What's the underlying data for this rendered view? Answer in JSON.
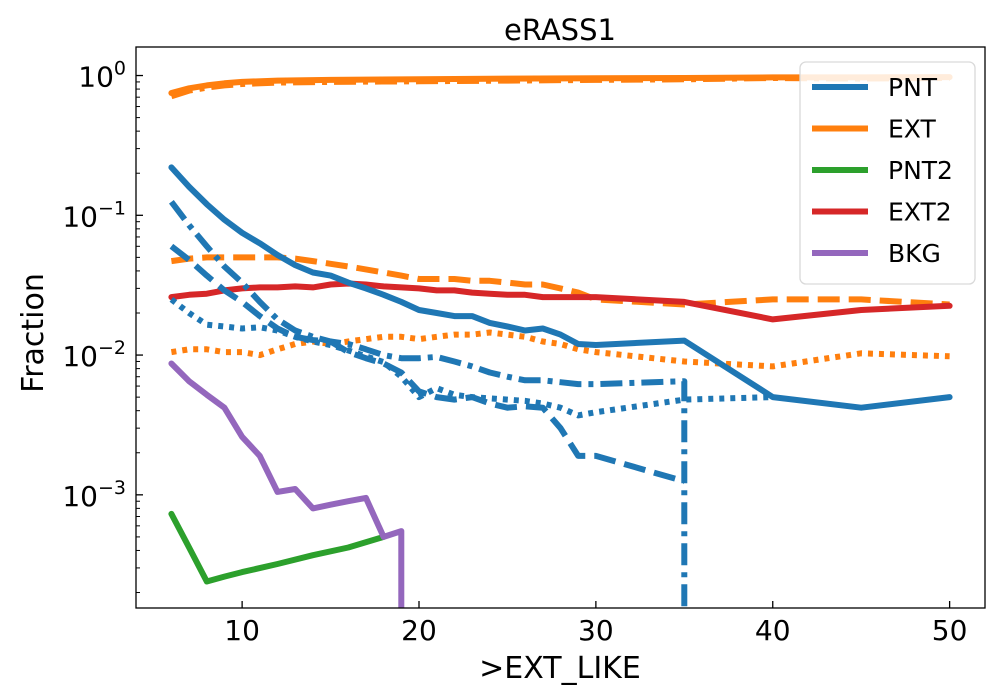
{
  "chart_data": {
    "type": "line",
    "title": "eRASS1",
    "xlabel": ">EXT_LIKE",
    "ylabel": "Fraction",
    "xlim": [
      4,
      52
    ],
    "ylim": [
      0.000155,
      1.6
    ],
    "yscale": "log",
    "x_ticks": [
      10,
      20,
      30,
      40,
      50
    ],
    "x_tick_labels": [
      "10",
      "20",
      "30",
      "40",
      "50"
    ],
    "y_ticks": [
      1,
      0.1,
      0.01,
      0.001
    ],
    "y_tick_labels": [
      {
        "base": "10",
        "exp": "0"
      },
      {
        "base": "10",
        "exp": "−1"
      },
      {
        "base": "10",
        "exp": "−2"
      },
      {
        "base": "10",
        "exp": "−3"
      }
    ],
    "grid": false,
    "legend_position": "top-right",
    "legend": [
      {
        "name": "PNT",
        "color": "#1f77b4"
      },
      {
        "name": "EXT",
        "color": "#ff7f0e"
      },
      {
        "name": "PNT2",
        "color": "#2ca02c"
      },
      {
        "name": "EXT2",
        "color": "#d62728"
      },
      {
        "name": "BKG",
        "color": "#9467bd"
      }
    ],
    "series": [
      {
        "id": "ext-dashdot",
        "color": "#ff7f0e",
        "style": "dashdot",
        "points": [
          [
            6,
            0.71
          ],
          [
            7,
            0.78
          ],
          [
            8,
            0.82
          ],
          [
            9,
            0.85
          ],
          [
            10,
            0.87
          ],
          [
            12,
            0.89
          ],
          [
            15,
            0.9
          ],
          [
            20,
            0.91
          ],
          [
            25,
            0.92
          ],
          [
            30,
            0.93
          ],
          [
            35,
            0.94
          ],
          [
            40,
            0.96
          ],
          [
            45,
            0.95
          ],
          [
            50,
            0.96
          ]
        ]
      },
      {
        "id": "ext-solid",
        "color": "#ff7f0e",
        "style": "solid",
        "points": [
          [
            6,
            0.75
          ],
          [
            7,
            0.81
          ],
          [
            8,
            0.85
          ],
          [
            9,
            0.88
          ],
          [
            10,
            0.9
          ],
          [
            12,
            0.92
          ],
          [
            15,
            0.93
          ],
          [
            20,
            0.94
          ],
          [
            25,
            0.95
          ],
          [
            30,
            0.955
          ],
          [
            35,
            0.96
          ],
          [
            40,
            0.97
          ],
          [
            45,
            0.97
          ],
          [
            50,
            0.975
          ]
        ]
      },
      {
        "id": "ext-dashed",
        "color": "#ff7f0e",
        "style": "dashed",
        "points": [
          [
            6,
            0.047
          ],
          [
            7,
            0.049
          ],
          [
            8,
            0.05
          ],
          [
            9,
            0.05
          ],
          [
            10,
            0.05
          ],
          [
            12,
            0.05
          ],
          [
            13,
            0.049
          ],
          [
            14,
            0.047
          ],
          [
            15,
            0.045
          ],
          [
            16,
            0.043
          ],
          [
            17,
            0.041
          ],
          [
            18,
            0.039
          ],
          [
            19,
            0.037
          ],
          [
            20,
            0.035
          ],
          [
            21,
            0.035
          ],
          [
            22,
            0.035
          ],
          [
            23,
            0.034
          ],
          [
            24,
            0.034
          ],
          [
            25,
            0.033
          ],
          [
            26,
            0.032
          ],
          [
            27,
            0.032
          ],
          [
            28,
            0.03
          ],
          [
            29,
            0.028
          ],
          [
            30,
            0.025
          ],
          [
            35,
            0.023
          ],
          [
            40,
            0.025
          ],
          [
            45,
            0.025
          ],
          [
            50,
            0.023
          ]
        ]
      },
      {
        "id": "ext-dotted",
        "color": "#ff7f0e",
        "style": "dotted",
        "points": [
          [
            6,
            0.0105
          ],
          [
            7,
            0.011
          ],
          [
            8,
            0.011
          ],
          [
            9,
            0.0105
          ],
          [
            10,
            0.0105
          ],
          [
            11,
            0.01
          ],
          [
            12,
            0.011
          ],
          [
            13,
            0.012
          ],
          [
            14,
            0.0125
          ],
          [
            15,
            0.012
          ],
          [
            16,
            0.0125
          ],
          [
            17,
            0.013
          ],
          [
            18,
            0.0135
          ],
          [
            19,
            0.0135
          ],
          [
            20,
            0.013
          ],
          [
            21,
            0.0135
          ],
          [
            22,
            0.014
          ],
          [
            23,
            0.014
          ],
          [
            24,
            0.0145
          ],
          [
            25,
            0.014
          ],
          [
            26,
            0.0135
          ],
          [
            27,
            0.0125
          ],
          [
            28,
            0.012
          ],
          [
            29,
            0.011
          ],
          [
            30,
            0.0105
          ],
          [
            35,
            0.009
          ],
          [
            40,
            0.0083
          ],
          [
            45,
            0.0103
          ],
          [
            50,
            0.0098
          ]
        ]
      },
      {
        "id": "ext2-solid",
        "color": "#d62728",
        "style": "solid",
        "points": [
          [
            6,
            0.026
          ],
          [
            7,
            0.027
          ],
          [
            8,
            0.0275
          ],
          [
            9,
            0.029
          ],
          [
            10,
            0.03
          ],
          [
            11,
            0.0305
          ],
          [
            12,
            0.0305
          ],
          [
            13,
            0.031
          ],
          [
            14,
            0.0305
          ],
          [
            15,
            0.032
          ],
          [
            16,
            0.0325
          ],
          [
            17,
            0.032
          ],
          [
            18,
            0.031
          ],
          [
            19,
            0.0305
          ],
          [
            20,
            0.03
          ],
          [
            21,
            0.029
          ],
          [
            22,
            0.029
          ],
          [
            23,
            0.028
          ],
          [
            24,
            0.0275
          ],
          [
            25,
            0.027
          ],
          [
            26,
            0.027
          ],
          [
            27,
            0.026
          ],
          [
            28,
            0.026
          ],
          [
            29,
            0.026
          ],
          [
            30,
            0.026
          ],
          [
            35,
            0.024
          ],
          [
            40,
            0.018
          ],
          [
            45,
            0.021
          ],
          [
            50,
            0.0225
          ]
        ]
      },
      {
        "id": "pnt-solid",
        "color": "#1f77b4",
        "style": "solid",
        "points": [
          [
            6,
            0.22
          ],
          [
            7,
            0.16
          ],
          [
            8,
            0.12
          ],
          [
            9,
            0.093
          ],
          [
            10,
            0.075
          ],
          [
            11,
            0.063
          ],
          [
            12,
            0.052
          ],
          [
            13,
            0.044
          ],
          [
            14,
            0.039
          ],
          [
            15,
            0.037
          ],
          [
            16,
            0.033
          ],
          [
            17,
            0.03
          ],
          [
            18,
            0.027
          ],
          [
            19,
            0.024
          ],
          [
            20,
            0.021
          ],
          [
            21,
            0.02
          ],
          [
            22,
            0.019
          ],
          [
            23,
            0.019
          ],
          [
            24,
            0.017
          ],
          [
            25,
            0.016
          ],
          [
            26,
            0.015
          ],
          [
            27,
            0.0155
          ],
          [
            28,
            0.014
          ],
          [
            29,
            0.012
          ],
          [
            30,
            0.0118
          ],
          [
            35,
            0.0127
          ],
          [
            40,
            0.005
          ],
          [
            45,
            0.0042
          ],
          [
            50,
            0.005
          ]
        ]
      },
      {
        "id": "pnt-dashdot",
        "color": "#1f77b4",
        "style": "dashdot",
        "points": [
          [
            6,
            0.125
          ],
          [
            7,
            0.085
          ],
          [
            8,
            0.06
          ],
          [
            9,
            0.043
          ],
          [
            10,
            0.033
          ],
          [
            11,
            0.024
          ],
          [
            12,
            0.018
          ],
          [
            13,
            0.015
          ],
          [
            14,
            0.0135
          ],
          [
            15,
            0.0125
          ],
          [
            16,
            0.012
          ],
          [
            17,
            0.011
          ],
          [
            18,
            0.01
          ],
          [
            19,
            0.0095
          ],
          [
            20,
            0.0095
          ],
          [
            21,
            0.0097
          ],
          [
            22,
            0.009
          ],
          [
            23,
            0.0083
          ],
          [
            24,
            0.0075
          ],
          [
            25,
            0.007
          ],
          [
            26,
            0.0066
          ],
          [
            27,
            0.0066
          ],
          [
            28,
            0.0064
          ],
          [
            29,
            0.0062
          ],
          [
            30,
            0.0062
          ],
          [
            35,
            0.0065
          ],
          [
            35,
            0.0001
          ]
        ]
      },
      {
        "id": "pnt-dashed",
        "color": "#1f77b4",
        "style": "dashed",
        "points": [
          [
            6,
            0.06
          ],
          [
            7,
            0.048
          ],
          [
            8,
            0.037
          ],
          [
            9,
            0.029
          ],
          [
            10,
            0.024
          ],
          [
            11,
            0.019
          ],
          [
            12,
            0.0155
          ],
          [
            13,
            0.0135
          ],
          [
            14,
            0.0128
          ],
          [
            15,
            0.0125
          ],
          [
            16,
            0.0105
          ],
          [
            17,
            0.0095
          ],
          [
            18,
            0.0087
          ],
          [
            19,
            0.0075
          ],
          [
            20,
            0.0055
          ],
          [
            21,
            0.005
          ],
          [
            22,
            0.0048
          ],
          [
            23,
            0.005
          ],
          [
            24,
            0.0045
          ],
          [
            25,
            0.0042
          ],
          [
            26,
            0.0043
          ],
          [
            27,
            0.0042
          ],
          [
            28,
            0.003
          ],
          [
            29,
            0.0019
          ],
          [
            30,
            0.0019
          ],
          [
            35,
            0.00125
          ]
        ]
      },
      {
        "id": "pnt-dotted",
        "color": "#1f77b4",
        "style": "dotted",
        "points": [
          [
            6,
            0.025
          ],
          [
            7,
            0.02
          ],
          [
            8,
            0.0165
          ],
          [
            9,
            0.016
          ],
          [
            10,
            0.0155
          ],
          [
            11,
            0.0158
          ],
          [
            12,
            0.015
          ],
          [
            13,
            0.0135
          ],
          [
            14,
            0.0125
          ],
          [
            15,
            0.0118
          ],
          [
            16,
            0.0108
          ],
          [
            17,
            0.0098
          ],
          [
            18,
            0.0089
          ],
          [
            19,
            0.007
          ],
          [
            20,
            0.005
          ],
          [
            21,
            0.0058
          ],
          [
            22,
            0.0052
          ],
          [
            23,
            0.005
          ],
          [
            24,
            0.0049
          ],
          [
            25,
            0.0048
          ],
          [
            26,
            0.0047
          ],
          [
            27,
            0.0045
          ],
          [
            28,
            0.0042
          ],
          [
            29,
            0.0037
          ],
          [
            30,
            0.0039
          ],
          [
            35,
            0.0048
          ],
          [
            40,
            0.005
          ]
        ]
      },
      {
        "id": "pnt2-solid",
        "color": "#2ca02c",
        "style": "solid",
        "points": [
          [
            6,
            0.00073
          ],
          [
            7,
            0.00042
          ],
          [
            8,
            0.00024
          ],
          [
            9,
            0.00026
          ],
          [
            10,
            0.00028
          ],
          [
            12,
            0.00032
          ],
          [
            14,
            0.00037
          ],
          [
            16,
            0.00042
          ],
          [
            18,
            0.0005
          ]
        ]
      },
      {
        "id": "bkg-solid",
        "color": "#9467bd",
        "style": "solid",
        "points": [
          [
            6,
            0.0087
          ],
          [
            7,
            0.0065
          ],
          [
            8,
            0.0052
          ],
          [
            9,
            0.0042
          ],
          [
            10,
            0.0026
          ],
          [
            11,
            0.0019
          ],
          [
            12,
            0.00105
          ],
          [
            13,
            0.0011
          ],
          [
            14,
            0.0008
          ],
          [
            15,
            0.00085
          ],
          [
            16,
            0.0009
          ],
          [
            17,
            0.00095
          ],
          [
            18,
            0.0005
          ],
          [
            19,
            0.00055
          ],
          [
            19,
            0.0001
          ]
        ]
      }
    ]
  }
}
